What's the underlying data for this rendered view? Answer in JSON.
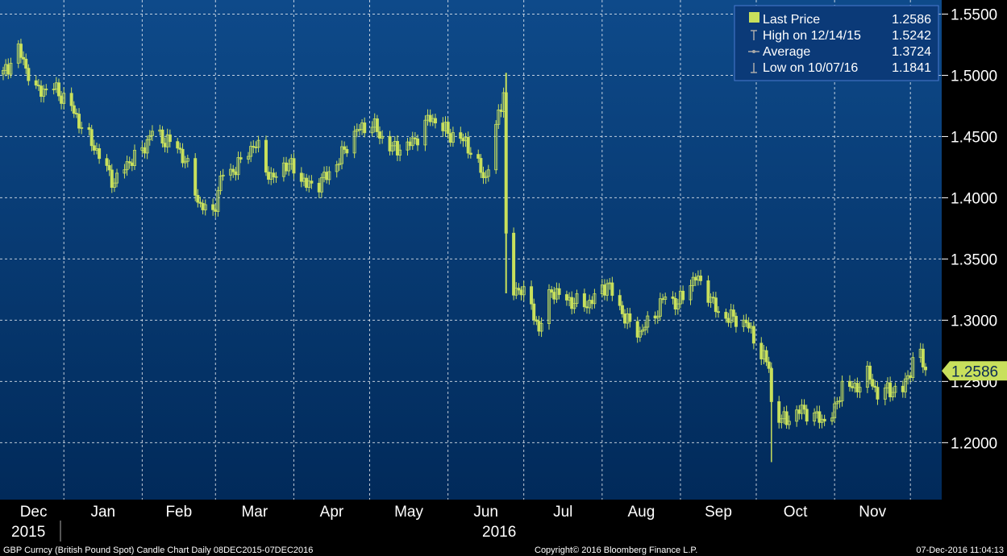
{
  "colors": {
    "background_top": "#0e4a8a",
    "background_bottom": "#012a5a",
    "candle": "#c8e05c",
    "grid": "#ffffff",
    "axis_panel": "#000000",
    "legend_border": "#4a7ad0"
  },
  "legend": {
    "items": [
      {
        "icon": "square-icon",
        "label": "Last Price",
        "value": "1.2586"
      },
      {
        "icon": "high-marker-icon",
        "label": "High on 12/14/15",
        "value": "1.5242"
      },
      {
        "icon": "average-marker-icon",
        "label": "Average",
        "value": "1.3724"
      },
      {
        "icon": "low-marker-icon",
        "label": "Low on 10/07/16",
        "value": "1.1841"
      }
    ]
  },
  "last_price_tag": "1.2586",
  "footer": {
    "left": "GBP Curncy (British Pound Spot) Candle Chart  Daily 08DEC2015-07DEC2016",
    "center": "Copyright© 2016 Bloomberg Finance L.P.",
    "right": "07-Dec-2016 11:04:13"
  },
  "chart_data": {
    "type": "candlestick",
    "yaxis": {
      "ticks": [
        "1.2000",
        "1.2500",
        "1.3000",
        "1.3500",
        "1.4000",
        "1.4500",
        "1.5000",
        "1.5500"
      ],
      "ylim": [
        1.1535,
        1.5615
      ],
      "position": "right"
    },
    "xaxis": {
      "months": [
        "Dec",
        "Jan",
        "Feb",
        "Mar",
        "Apr",
        "May",
        "Jun",
        "Jul",
        "Aug",
        "Sep",
        "Oct",
        "Nov"
      ],
      "years": [
        "2015",
        "2016"
      ],
      "range": [
        "2015-12-08",
        "2016-12-07"
      ]
    },
    "grid": true,
    "legend_placement": "top-right",
    "series": [
      {
        "name": "Last Price",
        "points": [
          [
            "2015-12-08",
            1.501
          ],
          [
            "2015-12-14",
            1.521
          ],
          [
            "2015-12-21",
            1.487
          ],
          [
            "2015-12-28",
            1.49
          ],
          [
            "2016-01-04",
            1.474
          ],
          [
            "2016-01-08",
            1.458
          ],
          [
            "2016-01-13",
            1.442
          ],
          [
            "2016-01-18",
            1.423
          ],
          [
            "2016-01-21",
            1.412
          ],
          [
            "2016-01-26",
            1.428
          ],
          [
            "2016-02-01",
            1.438
          ],
          [
            "2016-02-05",
            1.455
          ],
          [
            "2016-02-09",
            1.448
          ],
          [
            "2016-02-15",
            1.442
          ],
          [
            "2016-02-19",
            1.425
          ],
          [
            "2016-02-24",
            1.393
          ],
          [
            "2016-02-29",
            1.388
          ],
          [
            "2016-03-04",
            1.421
          ],
          [
            "2016-03-09",
            1.423
          ],
          [
            "2016-03-14",
            1.44
          ],
          [
            "2016-03-18",
            1.442
          ],
          [
            "2016-03-23",
            1.414
          ],
          [
            "2016-03-28",
            1.427
          ],
          [
            "2016-04-01",
            1.425
          ],
          [
            "2016-04-06",
            1.41
          ],
          [
            "2016-04-11",
            1.412
          ],
          [
            "2016-04-14",
            1.418
          ],
          [
            "2016-04-19",
            1.431
          ],
          [
            "2016-04-22",
            1.443
          ],
          [
            "2016-04-26",
            1.455
          ],
          [
            "2016-05-02",
            1.461
          ],
          [
            "2016-05-05",
            1.451
          ],
          [
            "2016-05-10",
            1.44
          ],
          [
            "2016-05-16",
            1.442
          ],
          [
            "2016-05-20",
            1.45
          ],
          [
            "2016-05-25",
            1.466
          ],
          [
            "2016-05-31",
            1.455
          ],
          [
            "2016-06-03",
            1.45
          ],
          [
            "2016-06-08",
            1.446
          ],
          [
            "2016-06-13",
            1.425
          ],
          [
            "2016-06-16",
            1.416
          ],
          [
            "2016-06-21",
            1.467
          ],
          [
            "2016-06-23",
            1.487
          ],
          [
            "2016-06-24",
            1.367
          ],
          [
            "2016-06-27",
            1.322
          ],
          [
            "2016-06-30",
            1.327
          ],
          [
            "2016-07-05",
            1.305
          ],
          [
            "2016-07-07",
            1.292
          ],
          [
            "2016-07-12",
            1.325
          ],
          [
            "2016-07-15",
            1.32
          ],
          [
            "2016-07-20",
            1.315
          ],
          [
            "2016-07-26",
            1.313
          ],
          [
            "2016-07-29",
            1.318
          ],
          [
            "2016-08-03",
            1.33
          ],
          [
            "2016-08-08",
            1.31
          ],
          [
            "2016-08-12",
            1.296
          ],
          [
            "2016-08-16",
            1.29
          ],
          [
            "2016-08-22",
            1.305
          ],
          [
            "2016-08-26",
            1.32
          ],
          [
            "2016-08-31",
            1.313
          ],
          [
            "2016-09-05",
            1.331
          ],
          [
            "2016-09-07",
            1.335
          ],
          [
            "2016-09-12",
            1.322
          ],
          [
            "2016-09-16",
            1.305
          ],
          [
            "2016-09-21",
            1.302
          ],
          [
            "2016-09-27",
            1.298
          ],
          [
            "2016-10-03",
            1.273
          ],
          [
            "2016-10-06",
            1.262
          ],
          [
            "2016-10-07",
            1.232
          ],
          [
            "2016-10-11",
            1.218
          ],
          [
            "2016-10-14",
            1.22
          ],
          [
            "2016-10-19",
            1.227
          ],
          [
            "2016-10-24",
            1.222
          ],
          [
            "2016-10-27",
            1.218
          ],
          [
            "2016-11-01",
            1.225
          ],
          [
            "2016-11-04",
            1.248
          ],
          [
            "2016-11-09",
            1.244
          ],
          [
            "2016-11-14",
            1.256
          ],
          [
            "2016-11-18",
            1.24
          ],
          [
            "2016-11-22",
            1.243
          ],
          [
            "2016-11-28",
            1.243
          ],
          [
            "2016-12-02",
            1.266
          ],
          [
            "2016-12-05",
            1.272
          ],
          [
            "2016-12-07",
            1.2586
          ]
        ]
      }
    ]
  }
}
